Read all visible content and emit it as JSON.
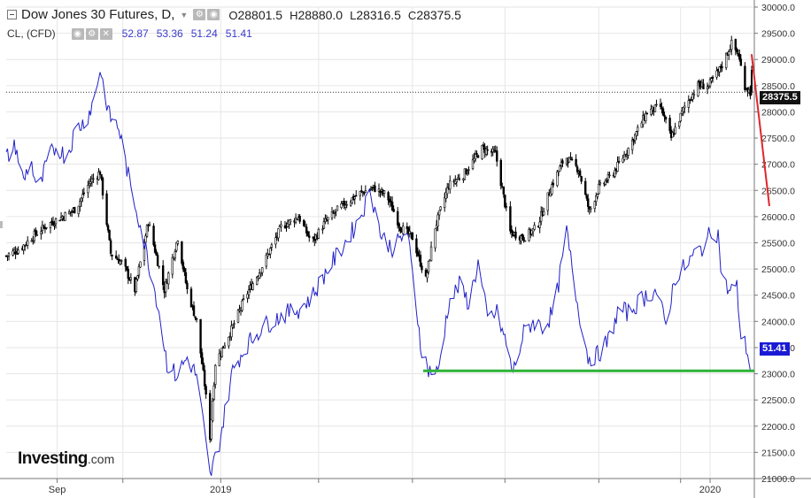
{
  "legend": {
    "title": "Dow Jones 30 Futures, D,",
    "open_label": "O",
    "open": "28801.5",
    "high_label": "H",
    "high": "28880.0",
    "low_label": "L",
    "low": "28316.5",
    "close_label": "C",
    "close": "28375.5",
    "sub_title": "CL, (CFD)",
    "osc_values": [
      "52.87",
      "53.36",
      "51.24",
      "51.41"
    ],
    "settings_glyph": "⚙",
    "visibility_glyph": "◉",
    "close_glyph": "✕",
    "caret": "▼"
  },
  "tags": {
    "last_price": "28375.5",
    "osc_last": "51.41"
  },
  "logo": {
    "brand": "Investing",
    "suffix": ".com"
  },
  "colors": {
    "background": "#ffffff",
    "grid": "#e6e6e6",
    "candles": "#000000",
    "oscillator": "#2020c8",
    "support_line": "#2db336",
    "trend_line": "#e0262b",
    "last_price_tag": "#111111",
    "osc_tag": "#1a1ad6",
    "axis": "#777777"
  },
  "chart_data": [
    {
      "type": "candlestick",
      "title": "Dow Jones 30 Futures, D,",
      "timeframe": "D",
      "ylim": [
        21000,
        30000
      ],
      "yticks": [
        21000,
        21500,
        22000,
        22500,
        23000,
        23500,
        24000,
        24500,
        25000,
        25500,
        26000,
        26500,
        27000,
        27500,
        28000,
        28500,
        29000,
        29500,
        30000
      ],
      "ytick_labels": [
        "21000.0",
        "21500.0",
        "22000.0",
        "22500.0",
        "23000.0",
        "23500.0",
        "24000.0",
        "24500.0",
        "25000.0",
        "25500.0",
        "26000.0",
        "26500.0",
        "27000.0",
        "27500.0",
        "28000.0",
        "28500.0",
        "29000.0",
        "29500.0",
        "30000.0"
      ],
      "xrange": [
        "2018-07-25",
        "2020-02-03"
      ],
      "xticks": [
        "2018-09-01",
        "2018-10-20",
        "2019-01-01",
        "2019-03-15",
        "2019-05-24",
        "2019-08-01",
        "2019-10-10",
        "2019-12-10",
        "2020-01-01"
      ],
      "xtick_labels": [
        "Sep",
        "",
        "2019",
        "",
        "",
        "",
        "",
        "",
        "2020"
      ],
      "grid": true,
      "last_price": 28375.5,
      "ohlc_last": {
        "open": 28801.5,
        "high": 28880.0,
        "low": 28316.5,
        "close": 28375.5
      },
      "close_series": [
        [
          "2018-07-25",
          25250
        ],
        [
          "2018-08-05",
          25400
        ],
        [
          "2018-08-15",
          25650
        ],
        [
          "2018-08-25",
          25850
        ],
        [
          "2018-09-05",
          26000
        ],
        [
          "2018-09-15",
          26150
        ],
        [
          "2018-09-25",
          26650
        ],
        [
          "2018-10-03",
          26850
        ],
        [
          "2018-10-11",
          25300
        ],
        [
          "2018-10-20",
          25100
        ],
        [
          "2018-10-29",
          24600
        ],
        [
          "2018-11-08",
          25900
        ],
        [
          "2018-11-20",
          24600
        ],
        [
          "2018-11-30",
          25600
        ],
        [
          "2018-12-07",
          24600
        ],
        [
          "2018-12-14",
          24000
        ],
        [
          "2018-12-20",
          22800
        ],
        [
          "2018-12-24",
          21800
        ],
        [
          "2018-12-28",
          23200
        ],
        [
          "2019-01-10",
          23900
        ],
        [
          "2019-01-20",
          24500
        ],
        [
          "2019-01-31",
          25000
        ],
        [
          "2019-02-15",
          25800
        ],
        [
          "2019-02-28",
          26000
        ],
        [
          "2019-03-10",
          25500
        ],
        [
          "2019-03-20",
          25900
        ],
        [
          "2019-04-01",
          26200
        ],
        [
          "2019-04-15",
          26450
        ],
        [
          "2019-04-25",
          26550
        ],
        [
          "2019-05-05",
          26400
        ],
        [
          "2019-05-15",
          25800
        ],
        [
          "2019-05-24",
          25600
        ],
        [
          "2019-06-03",
          24800
        ],
        [
          "2019-06-10",
          25800
        ],
        [
          "2019-06-20",
          26600
        ],
        [
          "2019-07-01",
          26800
        ],
        [
          "2019-07-15",
          27300
        ],
        [
          "2019-07-25",
          27200
        ],
        [
          "2019-08-05",
          25700
        ],
        [
          "2019-08-15",
          25600
        ],
        [
          "2019-08-25",
          25800
        ],
        [
          "2019-09-05",
          26600
        ],
        [
          "2019-09-15",
          27150
        ],
        [
          "2019-09-25",
          26900
        ],
        [
          "2019-10-03",
          26100
        ],
        [
          "2019-10-10",
          26550
        ],
        [
          "2019-10-20",
          26800
        ],
        [
          "2019-11-01",
          27300
        ],
        [
          "2019-11-15",
          28000
        ],
        [
          "2019-11-25",
          28100
        ],
        [
          "2019-12-03",
          27500
        ],
        [
          "2019-12-13",
          28100
        ],
        [
          "2019-12-23",
          28500
        ],
        [
          "2019-12-31",
          28500
        ],
        [
          "2020-01-08",
          28800
        ],
        [
          "2020-01-17",
          29300
        ],
        [
          "2020-01-22",
          29100
        ],
        [
          "2020-01-27",
          28500
        ],
        [
          "2020-01-31",
          28375
        ]
      ]
    },
    {
      "type": "line",
      "title": "CL, (CFD)",
      "overlay": true,
      "scale_note": "drawn in overlay scale; latest value 51.41",
      "last_values": [
        52.87,
        53.36,
        51.24,
        51.41
      ],
      "series": [
        [
          "2018-07-25",
          69
        ],
        [
          "2018-08-01",
          70
        ],
        [
          "2018-08-07",
          67
        ],
        [
          "2018-08-12",
          69
        ],
        [
          "2018-08-18",
          66
        ],
        [
          "2018-08-25",
          69
        ],
        [
          "2018-09-01",
          70
        ],
        [
          "2018-09-08",
          69
        ],
        [
          "2018-09-15",
          71.5
        ],
        [
          "2018-09-22",
          72
        ],
        [
          "2018-09-29",
          74
        ],
        [
          "2018-10-03",
          76.4
        ],
        [
          "2018-10-10",
          72.5
        ],
        [
          "2018-10-17",
          71.5
        ],
        [
          "2018-10-25",
          67
        ],
        [
          "2018-11-01",
          64
        ],
        [
          "2018-11-08",
          60.5
        ],
        [
          "2018-11-15",
          57
        ],
        [
          "2018-11-22",
          52
        ],
        [
          "2018-11-29",
          51
        ],
        [
          "2018-12-07",
          52.5
        ],
        [
          "2018-12-14",
          51
        ],
        [
          "2018-12-19",
          47
        ],
        [
          "2018-12-24",
          42.6
        ],
        [
          "2018-12-31",
          45.5
        ],
        [
          "2019-01-10",
          51.5
        ],
        [
          "2019-01-20",
          53.5
        ],
        [
          "2019-02-01",
          55
        ],
        [
          "2019-02-15",
          56
        ],
        [
          "2019-02-28",
          56.5
        ],
        [
          "2019-03-10",
          57.5
        ],
        [
          "2019-03-20",
          59.5
        ],
        [
          "2019-04-01",
          61.5
        ],
        [
          "2019-04-12",
          63.5
        ],
        [
          "2019-04-23",
          66.2
        ],
        [
          "2019-05-01",
          62.5
        ],
        [
          "2019-05-10",
          61.5
        ],
        [
          "2019-05-20",
          63
        ],
        [
          "2019-05-31",
          53
        ],
        [
          "2019-06-05",
          51.5
        ],
        [
          "2019-06-12",
          51.2
        ],
        [
          "2019-06-20",
          57
        ],
        [
          "2019-06-28",
          58.5
        ],
        [
          "2019-07-05",
          57
        ],
        [
          "2019-07-12",
          60.3
        ],
        [
          "2019-07-19",
          55.7
        ],
        [
          "2019-07-26",
          56.2
        ],
        [
          "2019-08-01",
          54
        ],
        [
          "2019-08-07",
          51.2
        ],
        [
          "2019-08-15",
          54.5
        ],
        [
          "2019-08-22",
          55.5
        ],
        [
          "2019-08-30",
          55
        ],
        [
          "2019-09-07",
          56.5
        ],
        [
          "2019-09-16",
          62.9
        ],
        [
          "2019-09-24",
          57
        ],
        [
          "2019-10-02",
          52.5
        ],
        [
          "2019-10-09",
          52.7
        ],
        [
          "2019-10-17",
          53.9
        ],
        [
          "2019-10-25",
          56.5
        ],
        [
          "2019-11-01",
          56.2
        ],
        [
          "2019-11-08",
          57
        ],
        [
          "2019-11-15",
          57.7
        ],
        [
          "2019-11-22",
          58
        ],
        [
          "2019-11-29",
          55.2
        ],
        [
          "2019-12-06",
          59.2
        ],
        [
          "2019-12-13",
          60
        ],
        [
          "2019-12-20",
          61
        ],
        [
          "2019-12-27",
          61.7
        ],
        [
          "2020-01-03",
          63.1
        ],
        [
          "2020-01-07",
          62.7
        ],
        [
          "2020-01-10",
          59
        ],
        [
          "2020-01-15",
          58
        ],
        [
          "2020-01-21",
          58.3
        ],
        [
          "2020-01-24",
          54.2
        ],
        [
          "2020-01-28",
          53.4
        ],
        [
          "2020-01-31",
          51.41
        ]
      ]
    }
  ],
  "drawings": {
    "support_level": 51.41,
    "support_from": "2019-06-01",
    "support_to": "2020-01-31",
    "trend_line": {
      "from": [
        "2020-01-28",
        29100
      ],
      "to": [
        "2020-02-01",
        26200
      ]
    }
  }
}
